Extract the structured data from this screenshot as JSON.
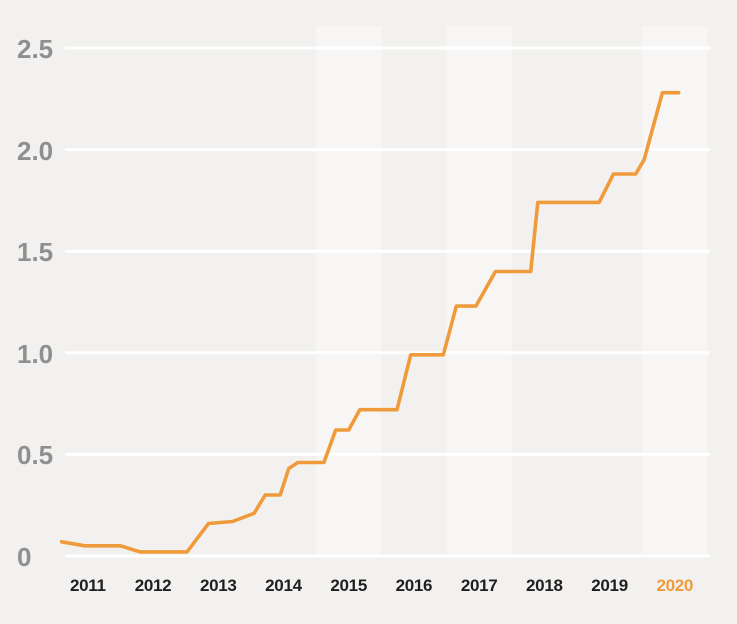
{
  "page": {
    "background_color": "#f2f1ef",
    "band_light_color": "#f7f6f4",
    "gridline_color": "#ffffff",
    "y_label_color": "#8f8f8f",
    "x_label_color": "#1f1f1f",
    "accent_color": "#ef9b3b"
  },
  "chart_data": {
    "type": "line",
    "title": "",
    "xlabel": "",
    "ylabel": "",
    "legend": "none",
    "grid": "horizontal white gridlines on light gray plot background",
    "background_bands_years": [
      2015,
      2017,
      2020
    ],
    "xlim": [
      2010.65,
      2020.54
    ],
    "ylim": [
      0,
      2.5
    ],
    "y_ticks": [
      {
        "label": "0",
        "value": 0
      },
      {
        "label": "0.5",
        "value": 0.5
      },
      {
        "label": "1.0",
        "value": 1.0
      },
      {
        "label": "1.5",
        "value": 1.5
      },
      {
        "label": "2.0",
        "value": 2.0
      },
      {
        "label": "2.5",
        "value": 2.5
      }
    ],
    "x_ticks": [
      {
        "label": "2011",
        "value": 2011,
        "highlight": false
      },
      {
        "label": "2012",
        "value": 2012,
        "highlight": false
      },
      {
        "label": "2013",
        "value": 2013,
        "highlight": false
      },
      {
        "label": "2014",
        "value": 2014,
        "highlight": false
      },
      {
        "label": "2015",
        "value": 2015,
        "highlight": false
      },
      {
        "label": "2016",
        "value": 2016,
        "highlight": false
      },
      {
        "label": "2017",
        "value": 2017,
        "highlight": false
      },
      {
        "label": "2018",
        "value": 2018,
        "highlight": false
      },
      {
        "label": "2019",
        "value": 2019,
        "highlight": false
      },
      {
        "label": "2020",
        "value": 2020,
        "highlight": true
      }
    ],
    "series": [
      {
        "name": "value",
        "color": "#ef9b3b",
        "points": [
          [
            2010.6,
            0.07
          ],
          [
            2010.95,
            0.05
          ],
          [
            2011.5,
            0.05
          ],
          [
            2011.8,
            0.02
          ],
          [
            2012.52,
            0.02
          ],
          [
            2012.85,
            0.16
          ],
          [
            2013.22,
            0.17
          ],
          [
            2013.55,
            0.21
          ],
          [
            2013.72,
            0.3
          ],
          [
            2013.95,
            0.3
          ],
          [
            2014.08,
            0.43
          ],
          [
            2014.22,
            0.46
          ],
          [
            2014.62,
            0.46
          ],
          [
            2014.8,
            0.62
          ],
          [
            2015.0,
            0.62
          ],
          [
            2015.17,
            0.72
          ],
          [
            2015.74,
            0.72
          ],
          [
            2015.95,
            0.99
          ],
          [
            2016.45,
            0.99
          ],
          [
            2016.65,
            1.23
          ],
          [
            2016.95,
            1.23
          ],
          [
            2017.25,
            1.4
          ],
          [
            2017.79,
            1.4
          ],
          [
            2017.9,
            1.74
          ],
          [
            2018.84,
            1.74
          ],
          [
            2019.06,
            1.88
          ],
          [
            2019.4,
            1.88
          ],
          [
            2019.53,
            1.95
          ],
          [
            2019.81,
            2.28
          ],
          [
            2020.06,
            2.28
          ]
        ]
      }
    ]
  }
}
